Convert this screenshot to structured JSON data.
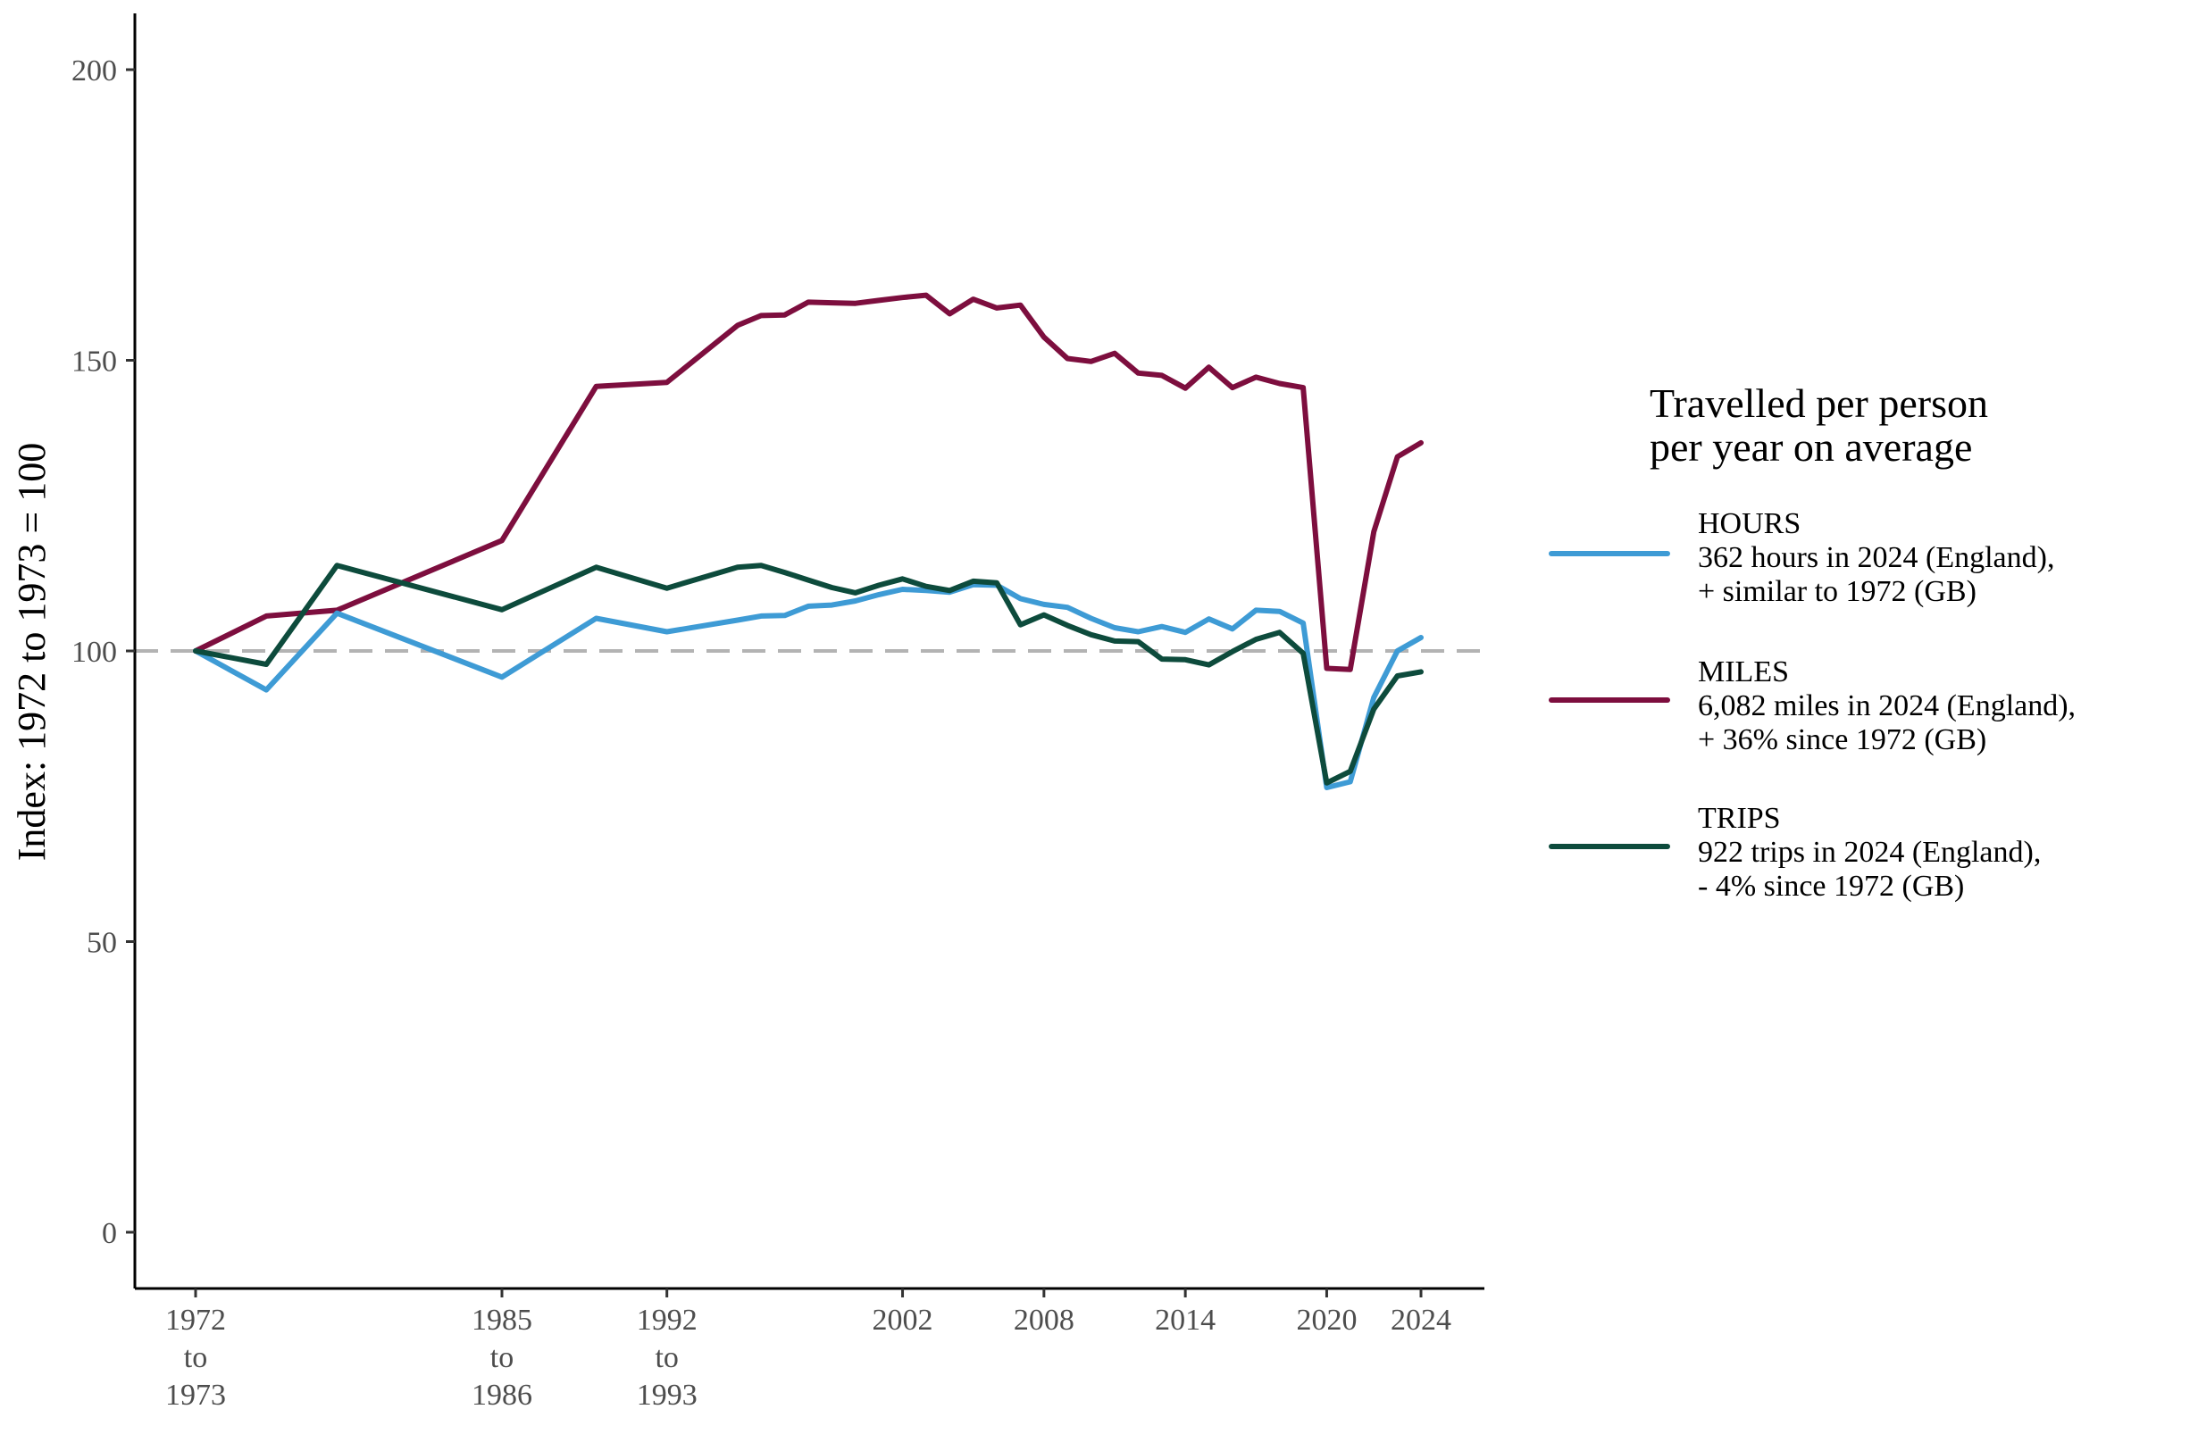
{
  "chart_data": {
    "type": "line",
    "ylabel": "Index: 1972 to 1973 = 100",
    "xlabel": "",
    "ylim": [
      -10,
      210
    ],
    "xlim": [
      1969.5,
      2025.5
    ],
    "y_ticks": [
      0,
      50,
      100,
      150,
      200
    ],
    "x_ticks": [
      {
        "x": 1972,
        "lines": [
          "1972",
          "to",
          "1973"
        ]
      },
      {
        "x": 1985,
        "lines": [
          "1985",
          "to",
          "1986"
        ]
      },
      {
        "x": 1992,
        "lines": [
          "1992",
          "to",
          "1993"
        ]
      },
      {
        "x": 2002,
        "lines": [
          "2002"
        ]
      },
      {
        "x": 2008,
        "lines": [
          "2008"
        ]
      },
      {
        "x": 2014,
        "lines": [
          "2014"
        ]
      },
      {
        "x": 2020,
        "lines": [
          "2020"
        ]
      },
      {
        "x": 2024,
        "lines": [
          "2024"
        ]
      }
    ],
    "reference_line": {
      "y": 100,
      "color": "#b3b3b3",
      "style": "dashed"
    },
    "grid": false,
    "legend": {
      "title_lines": [
        "Travelled per person",
        "per year on average"
      ],
      "position": "right"
    },
    "series": [
      {
        "name": "MILES",
        "color": "#7d0e3e",
        "legend_lines": [
          "MILES",
          "6,082 miles in 2024 (England),",
          "+ 36% since 1972 (GB)"
        ],
        "x": [
          1972,
          1975,
          1978,
          1985,
          1989,
          1992,
          1995,
          1996,
          1997,
          1998,
          1999,
          2000,
          2001,
          2002,
          2003,
          2004,
          2005,
          2006,
          2007,
          2008,
          2009,
          2010,
          2011,
          2012,
          2013,
          2014,
          2015,
          2016,
          2017,
          2018,
          2019,
          2020,
          2021,
          2022,
          2023,
          2024
        ],
        "values": [
          100,
          106,
          107,
          119,
          145.5,
          146.2,
          156,
          157.7,
          157.8,
          160,
          159.9,
          159.8,
          160.3,
          160.8,
          161.2,
          158,
          160.5,
          159,
          159.5,
          154,
          150.3,
          149.8,
          151.2,
          147.8,
          147.4,
          145.2,
          148.8,
          145.3,
          147.1,
          146,
          145.3,
          97,
          96.8,
          120.5,
          133.4,
          135.8
        ]
      },
      {
        "name": "HOURS",
        "color": "#3e9bd5",
        "legend_lines": [
          "HOURS",
          "362 hours in 2024 (England),",
          "+ similar to 1972 (GB)"
        ],
        "x": [
          1972,
          1975,
          1978,
          1985,
          1989,
          1992,
          1995,
          1996,
          1997,
          1998,
          1999,
          2000,
          2001,
          2002,
          2003,
          2004,
          2005,
          2006,
          2007,
          2008,
          2009,
          2010,
          2011,
          2012,
          2013,
          2014,
          2015,
          2016,
          2017,
          2018,
          2019,
          2020,
          2021,
          2022,
          2023,
          2024
        ],
        "values": [
          100,
          93.3,
          106.5,
          95.5,
          105.6,
          103.3,
          105.3,
          106,
          106.1,
          107.7,
          107.9,
          108.6,
          109.7,
          110.6,
          110.4,
          110.1,
          111.4,
          111.3,
          109,
          108,
          107.5,
          105.6,
          104,
          103.3,
          104.2,
          103.2,
          105.5,
          103.8,
          107,
          106.8,
          104.8,
          76.5,
          77.5,
          92,
          100,
          102.3
        ]
      },
      {
        "name": "TRIPS",
        "color": "#0d4b3c",
        "legend_lines": [
          "TRIPS",
          "922 trips in 2024 (England),",
          "- 4% since 1972 (GB)"
        ],
        "x": [
          1972,
          1975,
          1978,
          1985,
          1989,
          1992,
          1995,
          1996,
          1997,
          1998,
          1999,
          2000,
          2001,
          2002,
          2003,
          2004,
          2005,
          2006,
          2007,
          2008,
          2009,
          2010,
          2011,
          2012,
          2013,
          2014,
          2015,
          2016,
          2017,
          2018,
          2019,
          2020,
          2021,
          2022,
          2023,
          2024
        ],
        "values": [
          100,
          97.7,
          114.7,
          107.1,
          114.4,
          110.8,
          114.4,
          114.7,
          113.5,
          112.2,
          110.9,
          110,
          111.3,
          112.4,
          111.1,
          110.4,
          112,
          111.7,
          104.5,
          106.2,
          104.4,
          102.8,
          101.7,
          101.6,
          98.6,
          98.5,
          97.6,
          99.9,
          102,
          103.2,
          99.6,
          77.3,
          79.3,
          90,
          95.7,
          96.4
        ]
      }
    ]
  }
}
